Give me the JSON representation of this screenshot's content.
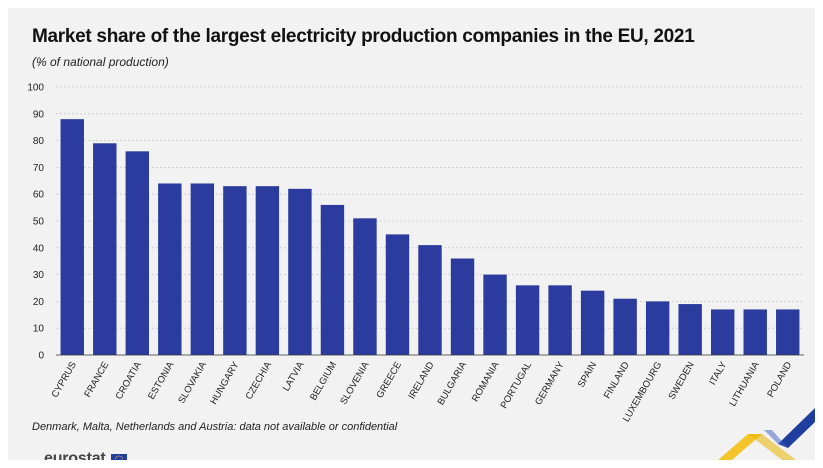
{
  "header": {
    "title": "Market share of the largest electricity production companies in the EU, 2021",
    "subtitle": "(% of national production)"
  },
  "footnote": "Denmark, Malta, Netherlands and Austria: data not available or confidential",
  "branding": {
    "logo_text": "eurostat",
    "logo_icon": "eu-flag-icon"
  },
  "colors": {
    "bar": "#2b3c9e",
    "grid": "#c8c8c8",
    "accent_yellow": "#f3c52b",
    "accent_blue": "#1f3e9e"
  },
  "chart_data": {
    "type": "bar",
    "title": "Market share of the largest electricity production companies in the EU, 2021",
    "subtitle": "(% of national production)",
    "categories": [
      "CYPRUS",
      "FRANCE",
      "CROATIA",
      "ESTONIA",
      "SLOVAKIA",
      "HUNGARY",
      "CZECHIA",
      "LATVIA",
      "BELGIUM",
      "SLOVENIA",
      "GREECE",
      "IRELAND",
      "BULGARIA",
      "ROMANIA",
      "PORTUGAL",
      "GERMANY",
      "SPAIN",
      "FINLAND",
      "LUXEMBOURG",
      "SWEDEN",
      "ITALY",
      "LITHUANIA",
      "POLAND"
    ],
    "values": [
      88,
      79,
      76,
      64,
      64,
      63,
      63,
      62,
      56,
      51,
      45,
      41,
      36,
      30,
      26,
      26,
      24,
      21,
      20,
      19,
      17,
      17,
      17
    ],
    "ylim": [
      0,
      100
    ],
    "yticks": [
      0,
      10,
      20,
      30,
      40,
      50,
      60,
      70,
      80,
      90,
      100
    ],
    "grid": true,
    "legend": "none"
  }
}
